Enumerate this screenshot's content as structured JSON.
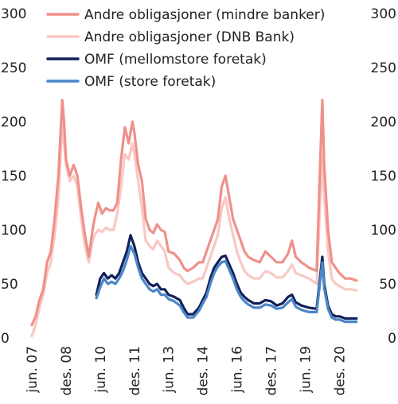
{
  "chart_data": {
    "type": "line",
    "title": "",
    "xlabel": "",
    "ylabel": "",
    "ylim": [
      0,
      300
    ],
    "yticks": [
      0,
      50,
      100,
      150,
      200,
      250,
      300
    ],
    "xlim": [
      "2007-06",
      "2021-12"
    ],
    "x_ticks": [
      {
        "label": "jun. 07",
        "date": "2007-06"
      },
      {
        "label": "des. 08",
        "date": "2008-12"
      },
      {
        "label": "jun. 10",
        "date": "2010-06"
      },
      {
        "label": "des. 11",
        "date": "2011-12"
      },
      {
        "label": "jun. 13",
        "date": "2013-06"
      },
      {
        "label": "des. 14",
        "date": "2014-12"
      },
      {
        "label": "jun. 16",
        "date": "2016-06"
      },
      {
        "label": "des. 17",
        "date": "2017-12"
      },
      {
        "label": "jun. 19",
        "date": "2019-06"
      },
      {
        "label": "des. 20",
        "date": "2020-12"
      }
    ],
    "grid": false,
    "legend_position": "top-left",
    "secondary_axis": "right, same scale",
    "series": [
      {
        "name": "Andre obligasjoner (mindre banker)",
        "color": "#f0908a",
        "points": [
          [
            "2007-06",
            12
          ],
          [
            "2007-08",
            20
          ],
          [
            "2007-10",
            35
          ],
          [
            "2007-12",
            45
          ],
          [
            "2008-02",
            70
          ],
          [
            "2008-04",
            80
          ],
          [
            "2008-06",
            110
          ],
          [
            "2008-08",
            150
          ],
          [
            "2008-10",
            220
          ],
          [
            "2008-11",
            200
          ],
          [
            "2008-12",
            165
          ],
          [
            "2009-02",
            150
          ],
          [
            "2009-04",
            160
          ],
          [
            "2009-06",
            150
          ],
          [
            "2009-08",
            120
          ],
          [
            "2009-10",
            95
          ],
          [
            "2009-12",
            75
          ],
          [
            "2010-02",
            100
          ],
          [
            "2010-03",
            110
          ],
          [
            "2010-05",
            125
          ],
          [
            "2010-07",
            115
          ],
          [
            "2010-09",
            120
          ],
          [
            "2010-11",
            118
          ],
          [
            "2011-01",
            118
          ],
          [
            "2011-03",
            125
          ],
          [
            "2011-05",
            165
          ],
          [
            "2011-07",
            195
          ],
          [
            "2011-09",
            180
          ],
          [
            "2011-11",
            200
          ],
          [
            "2011-12",
            190
          ],
          [
            "2012-02",
            160
          ],
          [
            "2012-04",
            145
          ],
          [
            "2012-06",
            110
          ],
          [
            "2012-08",
            100
          ],
          [
            "2012-10",
            97
          ],
          [
            "2012-12",
            105
          ],
          [
            "2013-02",
            100
          ],
          [
            "2013-04",
            98
          ],
          [
            "2013-06",
            80
          ],
          [
            "2013-09",
            78
          ],
          [
            "2013-12",
            72
          ],
          [
            "2014-02",
            65
          ],
          [
            "2014-04",
            62
          ],
          [
            "2014-07",
            65
          ],
          [
            "2014-10",
            70
          ],
          [
            "2014-12",
            70
          ],
          [
            "2015-02",
            80
          ],
          [
            "2015-04",
            90
          ],
          [
            "2015-06",
            100
          ],
          [
            "2015-08",
            110
          ],
          [
            "2015-10",
            140
          ],
          [
            "2015-12",
            150
          ],
          [
            "2016-02",
            130
          ],
          [
            "2016-04",
            110
          ],
          [
            "2016-06",
            100
          ],
          [
            "2016-08",
            90
          ],
          [
            "2016-10",
            80
          ],
          [
            "2016-12",
            75
          ],
          [
            "2017-03",
            72
          ],
          [
            "2017-06",
            70
          ],
          [
            "2017-09",
            80
          ],
          [
            "2017-12",
            75
          ],
          [
            "2018-03",
            70
          ],
          [
            "2018-06",
            70
          ],
          [
            "2018-09",
            78
          ],
          [
            "2018-11",
            90
          ],
          [
            "2019-01",
            75
          ],
          [
            "2019-04",
            70
          ],
          [
            "2019-08",
            65
          ],
          [
            "2019-12",
            62
          ],
          [
            "2020-03",
            220
          ],
          [
            "2020-04",
            160
          ],
          [
            "2020-06",
            100
          ],
          [
            "2020-08",
            70
          ],
          [
            "2020-10",
            65
          ],
          [
            "2020-12",
            60
          ],
          [
            "2021-03",
            55
          ],
          [
            "2021-06",
            55
          ],
          [
            "2021-09",
            53
          ]
        ]
      },
      {
        "name": "Andre obligasjoner (DNB Bank)",
        "color": "#f8c8c4",
        "points": [
          [
            "2007-06",
            2
          ],
          [
            "2007-08",
            12
          ],
          [
            "2007-10",
            28
          ],
          [
            "2007-12",
            40
          ],
          [
            "2008-02",
            60
          ],
          [
            "2008-04",
            70
          ],
          [
            "2008-06",
            95
          ],
          [
            "2008-08",
            130
          ],
          [
            "2008-10",
            200
          ],
          [
            "2008-11",
            180
          ],
          [
            "2008-12",
            160
          ],
          [
            "2009-02",
            145
          ],
          [
            "2009-04",
            150
          ],
          [
            "2009-06",
            140
          ],
          [
            "2009-08",
            110
          ],
          [
            "2009-10",
            85
          ],
          [
            "2009-12",
            70
          ],
          [
            "2010-02",
            90
          ],
          [
            "2010-03",
            95
          ],
          [
            "2010-05",
            100
          ],
          [
            "2010-07",
            98
          ],
          [
            "2010-09",
            102
          ],
          [
            "2010-11",
            100
          ],
          [
            "2011-01",
            100
          ],
          [
            "2011-03",
            115
          ],
          [
            "2011-05",
            140
          ],
          [
            "2011-07",
            170
          ],
          [
            "2011-09",
            165
          ],
          [
            "2011-11",
            180
          ],
          [
            "2011-12",
            170
          ],
          [
            "2012-02",
            145
          ],
          [
            "2012-04",
            120
          ],
          [
            "2012-06",
            90
          ],
          [
            "2012-08",
            85
          ],
          [
            "2012-10",
            82
          ],
          [
            "2012-12",
            90
          ],
          [
            "2013-02",
            85
          ],
          [
            "2013-04",
            80
          ],
          [
            "2013-06",
            65
          ],
          [
            "2013-09",
            60
          ],
          [
            "2013-12",
            58
          ],
          [
            "2014-02",
            53
          ],
          [
            "2014-04",
            50
          ],
          [
            "2014-07",
            52
          ],
          [
            "2014-10",
            55
          ],
          [
            "2014-12",
            55
          ],
          [
            "2015-02",
            65
          ],
          [
            "2015-04",
            75
          ],
          [
            "2015-06",
            85
          ],
          [
            "2015-08",
            95
          ],
          [
            "2015-10",
            120
          ],
          [
            "2015-12",
            130
          ],
          [
            "2016-02",
            110
          ],
          [
            "2016-04",
            95
          ],
          [
            "2016-06",
            80
          ],
          [
            "2016-08",
            70
          ],
          [
            "2016-10",
            62
          ],
          [
            "2016-12",
            58
          ],
          [
            "2017-03",
            55
          ],
          [
            "2017-06",
            55
          ],
          [
            "2017-09",
            62
          ],
          [
            "2017-12",
            60
          ],
          [
            "2018-03",
            56
          ],
          [
            "2018-06",
            56
          ],
          [
            "2018-09",
            62
          ],
          [
            "2018-11",
            68
          ],
          [
            "2019-01",
            60
          ],
          [
            "2019-04",
            58
          ],
          [
            "2019-08",
            55
          ],
          [
            "2019-12",
            50
          ],
          [
            "2020-03",
            170
          ],
          [
            "2020-04",
            130
          ],
          [
            "2020-06",
            80
          ],
          [
            "2020-08",
            55
          ],
          [
            "2020-10",
            50
          ],
          [
            "2020-12",
            48
          ],
          [
            "2021-03",
            45
          ],
          [
            "2021-06",
            45
          ],
          [
            "2021-09",
            44
          ]
        ]
      },
      {
        "name": "OMF (mellomstore foretak)",
        "color": "#12205a",
        "points": [
          [
            "2010-04",
            40
          ],
          [
            "2010-06",
            55
          ],
          [
            "2010-08",
            60
          ],
          [
            "2010-10",
            55
          ],
          [
            "2010-12",
            58
          ],
          [
            "2011-02",
            55
          ],
          [
            "2011-04",
            60
          ],
          [
            "2011-06",
            70
          ],
          [
            "2011-08",
            80
          ],
          [
            "2011-10",
            95
          ],
          [
            "2011-12",
            85
          ],
          [
            "2012-02",
            70
          ],
          [
            "2012-04",
            60
          ],
          [
            "2012-06",
            55
          ],
          [
            "2012-08",
            50
          ],
          [
            "2012-10",
            48
          ],
          [
            "2012-12",
            50
          ],
          [
            "2013-02",
            45
          ],
          [
            "2013-04",
            45
          ],
          [
            "2013-06",
            40
          ],
          [
            "2013-09",
            38
          ],
          [
            "2013-12",
            35
          ],
          [
            "2014-02",
            28
          ],
          [
            "2014-04",
            22
          ],
          [
            "2014-07",
            22
          ],
          [
            "2014-10",
            28
          ],
          [
            "2014-12",
            35
          ],
          [
            "2015-02",
            42
          ],
          [
            "2015-04",
            55
          ],
          [
            "2015-06",
            65
          ],
          [
            "2015-08",
            70
          ],
          [
            "2015-10",
            75
          ],
          [
            "2015-12",
            76
          ],
          [
            "2016-02",
            68
          ],
          [
            "2016-04",
            60
          ],
          [
            "2016-06",
            50
          ],
          [
            "2016-08",
            42
          ],
          [
            "2016-10",
            38
          ],
          [
            "2016-12",
            35
          ],
          [
            "2017-03",
            32
          ],
          [
            "2017-06",
            32
          ],
          [
            "2017-09",
            35
          ],
          [
            "2017-12",
            34
          ],
          [
            "2018-03",
            30
          ],
          [
            "2018-06",
            32
          ],
          [
            "2018-09",
            38
          ],
          [
            "2018-11",
            40
          ],
          [
            "2019-01",
            33
          ],
          [
            "2019-04",
            30
          ],
          [
            "2019-08",
            28
          ],
          [
            "2019-12",
            27
          ],
          [
            "2020-03",
            75
          ],
          [
            "2020-04",
            50
          ],
          [
            "2020-06",
            30
          ],
          [
            "2020-08",
            22
          ],
          [
            "2020-10",
            20
          ],
          [
            "2020-12",
            20
          ],
          [
            "2021-03",
            18
          ],
          [
            "2021-06",
            18
          ],
          [
            "2021-09",
            18
          ]
        ]
      },
      {
        "name": "OMF (store foretak)",
        "color": "#4a86c8",
        "points": [
          [
            "2010-04",
            37
          ],
          [
            "2010-06",
            47
          ],
          [
            "2010-08",
            55
          ],
          [
            "2010-10",
            50
          ],
          [
            "2010-12",
            52
          ],
          [
            "2011-02",
            50
          ],
          [
            "2011-04",
            55
          ],
          [
            "2011-06",
            62
          ],
          [
            "2011-08",
            72
          ],
          [
            "2011-10",
            85
          ],
          [
            "2011-12",
            78
          ],
          [
            "2012-02",
            65
          ],
          [
            "2012-04",
            55
          ],
          [
            "2012-06",
            50
          ],
          [
            "2012-08",
            45
          ],
          [
            "2012-10",
            43
          ],
          [
            "2012-12",
            45
          ],
          [
            "2013-02",
            40
          ],
          [
            "2013-04",
            40
          ],
          [
            "2013-06",
            36
          ],
          [
            "2013-09",
            34
          ],
          [
            "2013-12",
            30
          ],
          [
            "2014-02",
            24
          ],
          [
            "2014-04",
            19
          ],
          [
            "2014-07",
            19
          ],
          [
            "2014-10",
            25
          ],
          [
            "2014-12",
            32
          ],
          [
            "2015-02",
            38
          ],
          [
            "2015-04",
            50
          ],
          [
            "2015-06",
            60
          ],
          [
            "2015-08",
            66
          ],
          [
            "2015-10",
            70
          ],
          [
            "2015-12",
            71
          ],
          [
            "2016-02",
            63
          ],
          [
            "2016-04",
            55
          ],
          [
            "2016-06",
            45
          ],
          [
            "2016-08",
            38
          ],
          [
            "2016-10",
            34
          ],
          [
            "2016-12",
            31
          ],
          [
            "2017-03",
            28
          ],
          [
            "2017-06",
            28
          ],
          [
            "2017-09",
            31
          ],
          [
            "2017-12",
            30
          ],
          [
            "2018-03",
            27
          ],
          [
            "2018-06",
            28
          ],
          [
            "2018-09",
            33
          ],
          [
            "2018-11",
            36
          ],
          [
            "2019-01",
            29
          ],
          [
            "2019-04",
            26
          ],
          [
            "2019-08",
            24
          ],
          [
            "2019-12",
            24
          ],
          [
            "2020-03",
            70
          ],
          [
            "2020-04",
            46
          ],
          [
            "2020-06",
            27
          ],
          [
            "2020-08",
            19
          ],
          [
            "2020-10",
            17
          ],
          [
            "2020-12",
            17
          ],
          [
            "2021-03",
            15
          ],
          [
            "2021-06",
            15
          ],
          [
            "2021-09",
            15
          ]
        ]
      }
    ]
  }
}
